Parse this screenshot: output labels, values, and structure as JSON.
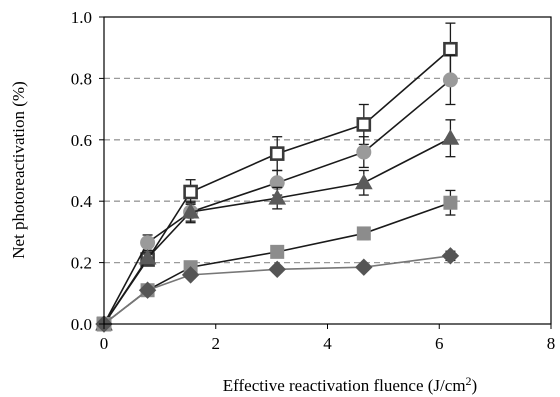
{
  "chart_data": {
    "type": "scatter",
    "title": "",
    "xlabel": "Effective reactivation fluence (J/cm",
    "xlabel_sup": "2",
    "xlabel_end": ")",
    "ylabel": "Net photoreactivation (%)",
    "xlim": [
      0,
      8
    ],
    "ylim": [
      0,
      1.0
    ],
    "x_ticks": [
      "0",
      "2",
      "4",
      "6",
      "8"
    ],
    "y_ticks": [
      "0.0",
      "0.2",
      "0.4",
      "0.6",
      "0.8",
      "1.0"
    ],
    "grid": "horizontal-dashed",
    "legend": "none",
    "series": [
      {
        "marker": "open-square",
        "color": "#3a3a3a",
        "points": [
          {
            "x": 0,
            "y": 0.0,
            "err": 0.0
          },
          {
            "x": 0.78,
            "y": 0.21,
            "err": 0.02
          },
          {
            "x": 1.55,
            "y": 0.43,
            "err": 0.04
          },
          {
            "x": 3.1,
            "y": 0.555,
            "err": 0.055
          },
          {
            "x": 4.65,
            "y": 0.65,
            "err": 0.065
          },
          {
            "x": 6.2,
            "y": 0.895,
            "err": 0.085
          }
        ]
      },
      {
        "marker": "circle",
        "color": "#9a9a9a",
        "points": [
          {
            "x": 0,
            "y": 0.0,
            "err": 0.0
          },
          {
            "x": 0.78,
            "y": 0.265,
            "err": 0.025
          },
          {
            "x": 1.55,
            "y": 0.365,
            "err": 0.035
          },
          {
            "x": 3.1,
            "y": 0.46,
            "err": 0.04
          },
          {
            "x": 4.65,
            "y": 0.56,
            "err": 0.05
          },
          {
            "x": 6.2,
            "y": 0.795,
            "err": 0.08
          }
        ]
      },
      {
        "marker": "triangle",
        "color": "#5a5a5a",
        "points": [
          {
            "x": 0,
            "y": 0.0,
            "err": 0.0
          },
          {
            "x": 0.78,
            "y": 0.215,
            "err": 0.02
          },
          {
            "x": 1.55,
            "y": 0.365,
            "err": 0.03
          },
          {
            "x": 3.1,
            "y": 0.41,
            "err": 0.035
          },
          {
            "x": 4.65,
            "y": 0.46,
            "err": 0.04
          },
          {
            "x": 6.2,
            "y": 0.605,
            "err": 0.06
          }
        ]
      },
      {
        "marker": "square",
        "color": "#8c8c8c",
        "points": [
          {
            "x": 0,
            "y": 0.0,
            "err": 0.0
          },
          {
            "x": 0.78,
            "y": 0.11,
            "err": 0.01
          },
          {
            "x": 1.55,
            "y": 0.185,
            "err": 0.015
          },
          {
            "x": 3.1,
            "y": 0.235,
            "err": 0.015
          },
          {
            "x": 4.65,
            "y": 0.295,
            "err": 0.02
          },
          {
            "x": 6.2,
            "y": 0.395,
            "err": 0.04
          }
        ]
      },
      {
        "marker": "diamond",
        "color": "#555555",
        "line_color": "#777777",
        "points": [
          {
            "x": 0,
            "y": 0.0,
            "err": 0.0
          },
          {
            "x": 0.78,
            "y": 0.11,
            "err": 0.01
          },
          {
            "x": 1.55,
            "y": 0.16,
            "err": 0.01
          },
          {
            "x": 3.1,
            "y": 0.178,
            "err": 0.01
          },
          {
            "x": 4.65,
            "y": 0.185,
            "err": 0.01
          },
          {
            "x": 6.2,
            "y": 0.222,
            "err": 0.015
          }
        ]
      }
    ]
  }
}
